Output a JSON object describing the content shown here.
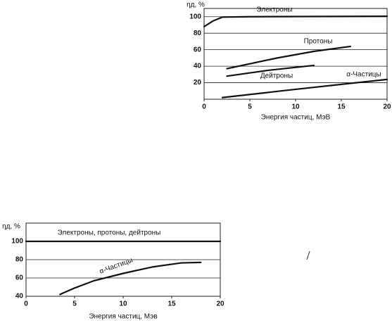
{
  "chart_data": [
    {
      "type": "line",
      "ylabel": "ηд, %",
      "xlabel": "Энергия частиц, МэВ",
      "xlim": [
        0,
        20
      ],
      "xticks": [
        0,
        5,
        10,
        15,
        20
      ],
      "ylim": [
        0,
        110
      ],
      "yticks": [
        20,
        40,
        60,
        80,
        100
      ],
      "grid": true,
      "series": [
        {
          "name": "Электроны",
          "color": "#111111",
          "x": [
            0,
            1,
            2,
            5,
            20
          ],
          "values": [
            88,
            95,
            99.5,
            100,
            100.5
          ]
        },
        {
          "name": "Протоны",
          "color": "#111111",
          "x": [
            2.5,
            8,
            12,
            16
          ],
          "values": [
            37,
            50,
            58,
            64
          ]
        },
        {
          "name": "Дейтроны",
          "color": "#111111",
          "x": [
            2.5,
            7,
            12
          ],
          "values": [
            28,
            35,
            41
          ]
        },
        {
          "name": "α-Частицы",
          "color": "#111111",
          "x": [
            2,
            10,
            20
          ],
          "values": [
            2,
            12,
            24
          ]
        }
      ]
    },
    {
      "type": "line",
      "ylabel": "ηд, %",
      "xlabel": "Энергия частиц, Мэв",
      "xlim": [
        0,
        20
      ],
      "xticks": [
        0,
        5,
        10,
        15,
        20
      ],
      "ylim": [
        40,
        120
      ],
      "yticks": [
        40,
        60,
        80,
        100
      ],
      "grid": true,
      "series": [
        {
          "name": "Электроны, протоны, дейтроны",
          "color": "#111111",
          "x": [
            0,
            20
          ],
          "values": [
            100,
            100
          ]
        },
        {
          "name": "α-Частицы",
          "color": "#111111",
          "x": [
            3.5,
            5,
            7,
            10,
            13,
            16,
            18
          ],
          "values": [
            42,
            49,
            57,
            65,
            72,
            76.5,
            77
          ]
        }
      ]
    }
  ]
}
